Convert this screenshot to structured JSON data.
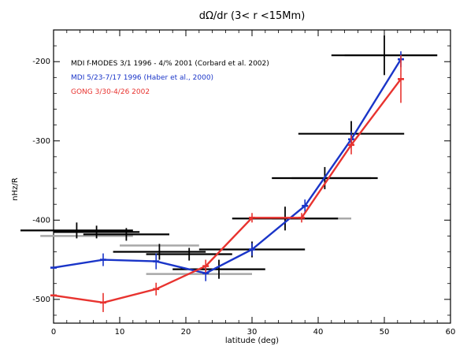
{
  "chart_data": {
    "type": "line",
    "title": "dΩ/dr (3< r <15Mm)",
    "xlabel": "latitude (deg)",
    "ylabel": "nHz/R",
    "xlim": [
      0,
      60
    ],
    "ylim": [
      -530,
      -160
    ],
    "x_ticks": [
      0,
      10,
      20,
      30,
      40,
      50,
      60
    ],
    "x_tick_labels": [
      "0",
      "10",
      "20",
      "30",
      "40",
      "50",
      "60"
    ],
    "y_ticks": [
      -500,
      -400,
      -300,
      -200
    ],
    "y_tick_labels": [
      "-500",
      "-400",
      "-300",
      "-200"
    ],
    "grid": false,
    "legend_position": "top-left",
    "series": [
      {
        "name": "MDI f-MODES 3/1 1996 - 4/% 2001 (Corbard et al. 2002)",
        "color": "#000000",
        "style": "segments",
        "points": [
          {
            "x": 3.5,
            "x_err": 8.5,
            "y": -413,
            "y_err": 10
          },
          {
            "x": 6.5,
            "x_err": 6.5,
            "y": -415,
            "y_err": 8
          },
          {
            "x": 11.0,
            "x_err": 6.5,
            "y": -418,
            "y_err": 8
          },
          {
            "x": 16.0,
            "x_err": 7.0,
            "y": -440,
            "y_err": 10
          },
          {
            "x": 20.5,
            "x_err": 6.5,
            "y": -443,
            "y_err": 8
          },
          {
            "x": 25.0,
            "x_err": 7.0,
            "y": -462,
            "y_err": 12
          },
          {
            "x": 30.0,
            "x_err": 8.0,
            "y": -437,
            "y_err": 10
          },
          {
            "x": 35.0,
            "x_err": 8.0,
            "y": -398,
            "y_err": 15
          },
          {
            "x": 41.0,
            "x_err": 8.0,
            "y": -347,
            "y_err": 14
          },
          {
            "x": 45.0,
            "x_err": 8.0,
            "y": -291,
            "y_err": 16
          },
          {
            "x": 50.0,
            "x_err": 8.0,
            "y": -192,
            "y_err": 25
          }
        ]
      },
      {
        "name": "MDI 5/23-7/17 1996 (Haber et al., 2000)",
        "color": "#1a35c8",
        "style": "line",
        "points": [
          {
            "x": 0,
            "y": -460,
            "y_err": 0
          },
          {
            "x": 7.5,
            "y": -450,
            "y_err": 8
          },
          {
            "x": 15.5,
            "y": -452,
            "y_err": 10
          },
          {
            "x": 23,
            "y": -467,
            "y_err": 10
          },
          {
            "x": 30,
            "y": -437,
            "y_err": 8
          },
          {
            "x": 38,
            "y": -382,
            "y_err": 8
          },
          {
            "x": 45,
            "y": -298,
            "y_err": 10
          },
          {
            "x": 52.5,
            "y": -197,
            "y_err": 10
          }
        ]
      },
      {
        "name": "GONG 3/30-4/26 2002",
        "color": "#e8332f",
        "style": "line",
        "points": [
          {
            "x": 0,
            "y": -495,
            "y_err": 0
          },
          {
            "x": 7.5,
            "y": -504,
            "y_err": 12
          },
          {
            "x": 15.5,
            "y": -487,
            "y_err": 8
          },
          {
            "x": 23,
            "y": -458,
            "y_err": 8
          },
          {
            "x": 30,
            "y": -397,
            "y_err": 6
          },
          {
            "x": 37.5,
            "y": -397,
            "y_err": 6
          },
          {
            "x": 45,
            "y": -305,
            "y_err": 12
          },
          {
            "x": 52.5,
            "y": -222,
            "y_err": 30
          }
        ]
      }
    ],
    "gray_bars": [
      {
        "x": 5.0,
        "x_err": 7.0,
        "y": -420
      },
      {
        "x": 16.0,
        "x_err": 6.0,
        "y": -432
      },
      {
        "x": 22.0,
        "x_err": 8.0,
        "y": -468
      },
      {
        "x": 39.0,
        "x_err": 6.0,
        "y": -398
      },
      {
        "x": 42.0,
        "x_err": 6.0,
        "y": -347
      },
      {
        "x": 51.0,
        "x_err": 7.0,
        "y": -192
      }
    ]
  }
}
